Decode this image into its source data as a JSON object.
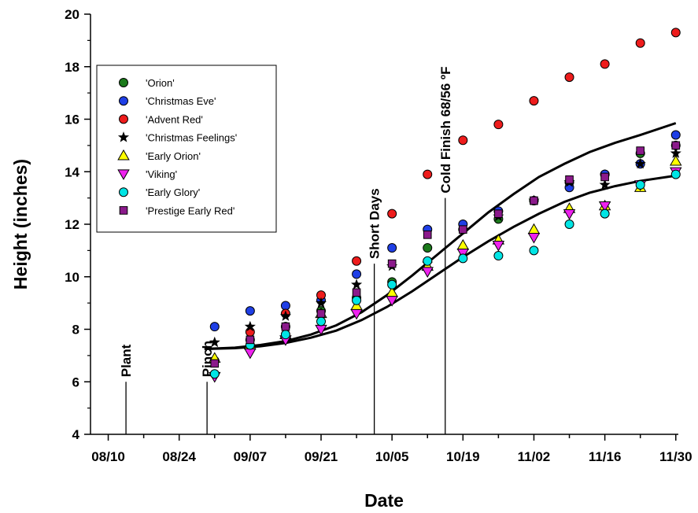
{
  "chart_data": {
    "type": "scatter",
    "title": "",
    "xlabel": "Date",
    "ylabel": "Height (inches)",
    "x_ticks": [
      "08/10",
      "08/24",
      "09/07",
      "09/21",
      "10/05",
      "10/19",
      "11/02",
      "11/16",
      "11/30"
    ],
    "x_tick_days": [
      0,
      14,
      28,
      42,
      56,
      70,
      84,
      98,
      112
    ],
    "xlim_days": [
      -3.5,
      112.5
    ],
    "ylim": [
      4,
      20
    ],
    "y_ticks": [
      4,
      6,
      8,
      10,
      12,
      14,
      16,
      18,
      20
    ],
    "x_unit": "days after 08/10",
    "grid": false,
    "legend_position": "upper-left",
    "events": [
      {
        "label": "Plant",
        "day": 3.5,
        "y_from": 4,
        "y_to": 6
      },
      {
        "label": "Pinch",
        "day": 19.5,
        "y_from": 4,
        "y_to": 6
      },
      {
        "label": "Short Days",
        "day": 52.5,
        "y_from": 4,
        "y_to": 10.5
      },
      {
        "label": "Cold Finish 68/56 ºF",
        "day": 66.5,
        "y_from": 4,
        "y_to": 13
      }
    ],
    "series": [
      {
        "name": "'Orion'",
        "marker": "circle",
        "color": "#1b7a1b",
        "x": [
          21,
          28,
          35,
          42,
          49,
          56,
          63,
          70,
          77,
          84,
          91,
          98,
          105,
          112
        ],
        "y": [
          6.8,
          7.6,
          8.1,
          8.7,
          9.2,
          9.8,
          11.1,
          11.8,
          12.2,
          12.9,
          13.6,
          13.9,
          14.7,
          15.0
        ]
      },
      {
        "name": "'Christmas Eve'",
        "marker": "circle",
        "color": "#1f3fe6",
        "x": [
          21,
          28,
          35,
          42,
          49,
          56,
          63,
          70,
          77,
          84,
          91,
          98,
          105,
          112
        ],
        "y": [
          8.1,
          8.7,
          8.9,
          9.1,
          10.1,
          11.1,
          11.8,
          12.0,
          12.5,
          12.9,
          13.4,
          13.9,
          14.3,
          15.4
        ]
      },
      {
        "name": "'Advent Red'",
        "marker": "circle",
        "color": "#ee1c1c",
        "x": [
          28,
          35,
          42,
          49,
          56,
          63,
          70,
          77,
          84,
          91,
          98,
          105,
          112
        ],
        "y": [
          7.9,
          8.6,
          9.3,
          10.6,
          12.4,
          13.9,
          15.2,
          15.8,
          16.7,
          17.6,
          18.1,
          18.9,
          19.3
        ]
      },
      {
        "name": "'Christmas Feelings'",
        "marker": "star",
        "color": "#000000",
        "x": [
          21,
          28,
          35,
          42,
          49,
          56,
          63,
          70,
          77,
          84,
          91,
          98,
          105,
          112
        ],
        "y": [
          7.5,
          8.1,
          8.5,
          9.0,
          9.7,
          10.4,
          10.5,
          11.0,
          12.3,
          12.9,
          13.6,
          13.5,
          14.3,
          14.7
        ]
      },
      {
        "name": "'Early Orion'",
        "marker": "triangle-up",
        "color": "#ffff00",
        "x": [
          21,
          28,
          35,
          42,
          49,
          56,
          63,
          70,
          77,
          84,
          91,
          98,
          105,
          112
        ],
        "y": [
          6.9,
          7.4,
          7.8,
          8.6,
          8.9,
          9.4,
          10.4,
          11.2,
          11.4,
          11.8,
          12.6,
          12.7,
          13.4,
          14.4
        ]
      },
      {
        "name": "'Viking'",
        "marker": "triangle-down",
        "color": "#ee22ee",
        "x": [
          21,
          28,
          35,
          42,
          49,
          56,
          63,
          70,
          77,
          84,
          91,
          98,
          105,
          112
        ],
        "y": [
          6.2,
          7.1,
          7.6,
          8.0,
          8.6,
          9.1,
          10.2,
          10.9,
          11.2,
          11.5,
          12.4,
          12.7,
          13.5,
          14.0
        ]
      },
      {
        "name": "'Early Glory'",
        "marker": "circle",
        "color": "#00e5e5",
        "x": [
          21,
          28,
          35,
          42,
          49,
          56,
          63,
          70,
          77,
          84,
          91,
          98,
          105,
          112
        ],
        "y": [
          6.3,
          7.4,
          7.8,
          8.3,
          9.1,
          9.7,
          10.6,
          10.7,
          10.8,
          11.0,
          12.0,
          12.4,
          13.5,
          13.9
        ]
      },
      {
        "name": "'Prestige Early Red'",
        "marker": "square",
        "color": "#8b1a8b",
        "x": [
          21,
          28,
          35,
          42,
          49,
          56,
          63,
          70,
          77,
          84,
          91,
          98,
          105,
          112
        ],
        "y": [
          6.7,
          7.6,
          8.1,
          8.6,
          9.4,
          10.5,
          11.6,
          11.8,
          12.4,
          12.9,
          13.7,
          13.8,
          14.8,
          15.0
        ]
      }
    ],
    "curves": [
      {
        "x": [
          19,
          25,
          30,
          35,
          40,
          45,
          50,
          55,
          60,
          65,
          70,
          75,
          80,
          85,
          90,
          95,
          100,
          105,
          112
        ],
        "y": [
          7.25,
          7.3,
          7.4,
          7.55,
          7.8,
          8.15,
          8.65,
          9.3,
          10.05,
          10.85,
          11.65,
          12.45,
          13.15,
          13.8,
          14.3,
          14.75,
          15.1,
          15.4,
          15.85
        ]
      },
      {
        "x": [
          19,
          25,
          30,
          35,
          40,
          45,
          50,
          55,
          60,
          65,
          70,
          75,
          80,
          85,
          90,
          95,
          100,
          105,
          112
        ],
        "y": [
          7.25,
          7.28,
          7.35,
          7.48,
          7.68,
          7.95,
          8.35,
          8.85,
          9.45,
          10.1,
          10.75,
          11.35,
          11.9,
          12.4,
          12.85,
          13.2,
          13.45,
          13.65,
          13.85
        ]
      }
    ]
  }
}
